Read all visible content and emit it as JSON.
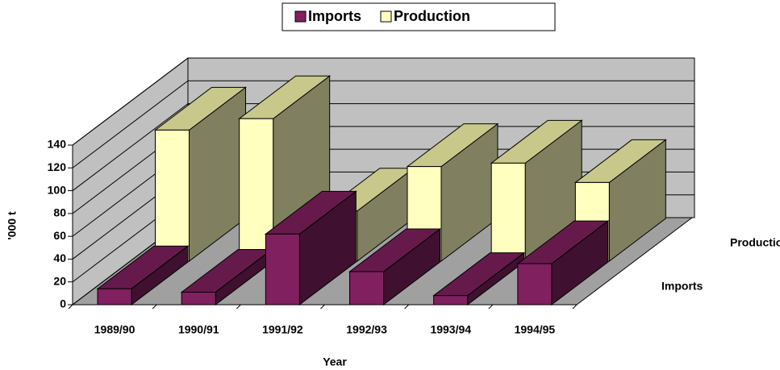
{
  "chart_data": {
    "type": "bar3d",
    "categories": [
      "1989/90",
      "1990/91",
      "1991/92",
      "1992/93",
      "1993/94",
      "1994/95"
    ],
    "series": [
      {
        "name": "Imports",
        "color": "#80205f",
        "values": [
          14,
          11,
          62,
          29,
          8,
          36
        ]
      },
      {
        "name": "Production",
        "color": "#ffffc0",
        "values": [
          115,
          125,
          44,
          83,
          86,
          69
        ]
      }
    ],
    "x_label": "Year",
    "y_label": "'000 t",
    "ylim": [
      0,
      140
    ],
    "yticks": [
      0,
      20,
      40,
      60,
      80,
      100,
      120,
      140
    ],
    "grid": true,
    "legend": "top"
  }
}
